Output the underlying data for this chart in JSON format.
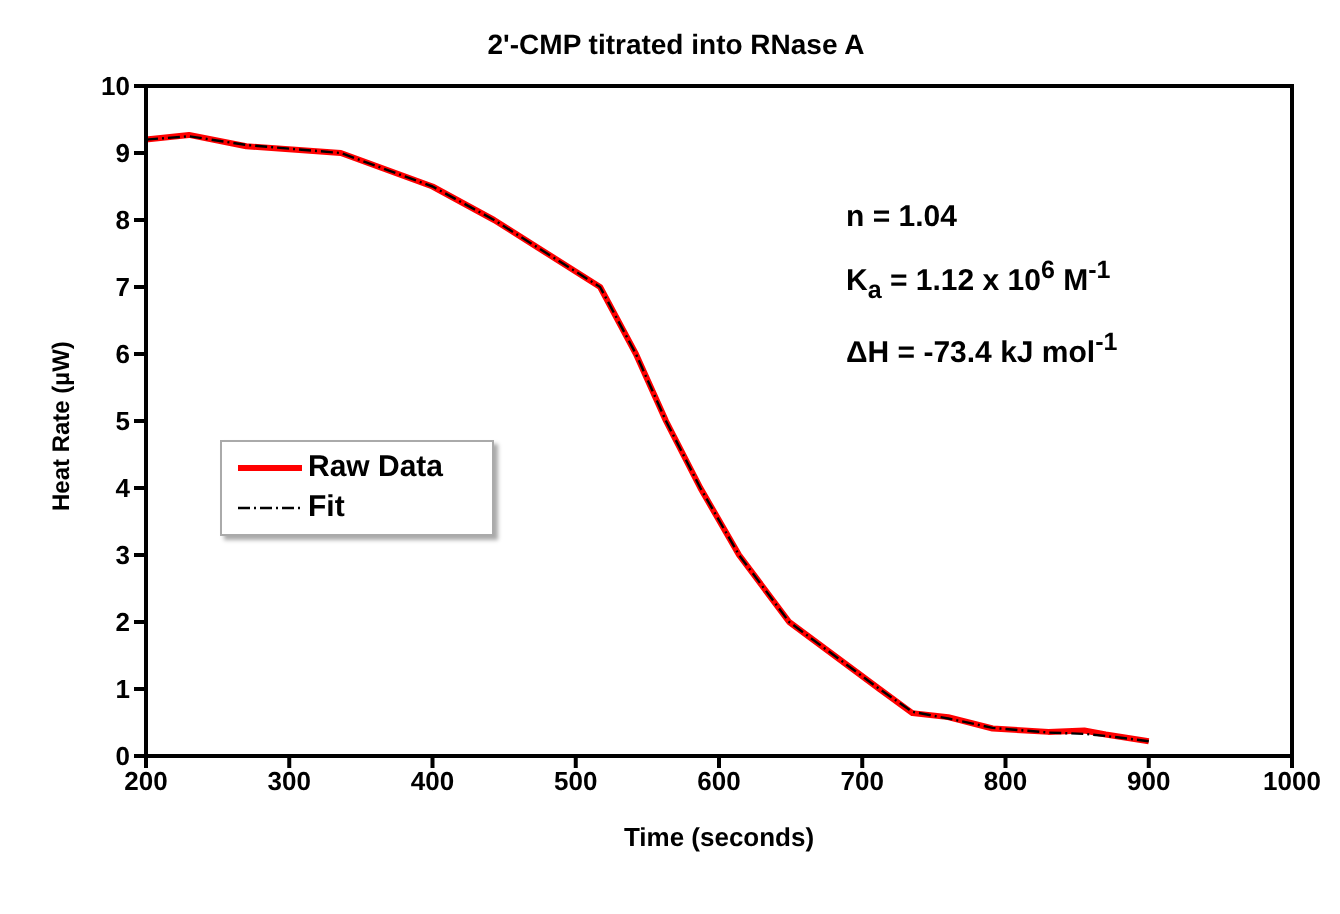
{
  "chart_data": {
    "type": "line",
    "title": "2'-CMP titrated into RNase A",
    "xlabel": "Time (seconds)",
    "ylabel": "Heat Rate (µW)",
    "annotations": [
      "n = 1.04",
      "K$_{a}$ = 1.12 x 10$^{6}$ M$^{-1}$",
      "ΔH = -73.4 kJ mol$^{-1}$"
    ],
    "series": [
      {
        "name": "Raw Data",
        "color": "#ff0000",
        "line_style": "solid",
        "x": [
          200,
          230,
          270,
          336,
          400,
          443,
          480,
          517,
          542,
          563,
          587,
          614,
          649,
          712,
          735,
          760,
          791,
          830,
          855,
          870,
          900
        ],
        "values": [
          9.2,
          9.27,
          9.1,
          9.0,
          8.5,
          8.0,
          7.5,
          7.0,
          6.0,
          5.0,
          4.0,
          3.0,
          2.0,
          1.0,
          0.64,
          0.58,
          0.41,
          0.36,
          0.38,
          0.32,
          0.22
        ]
      },
      {
        "name": "Fit",
        "color": "#000000",
        "line_style": "dashed",
        "x": [
          200,
          230,
          270,
          336,
          400,
          443,
          480,
          517,
          542,
          563,
          587,
          614,
          649,
          712,
          735,
          760,
          791,
          830,
          855,
          870,
          900
        ],
        "values": [
          9.2,
          9.25,
          9.12,
          9.0,
          8.5,
          8.0,
          7.5,
          7.0,
          6.0,
          5.0,
          4.0,
          3.0,
          2.0,
          1.0,
          0.66,
          0.56,
          0.42,
          0.35,
          0.33,
          0.3,
          0.22
        ]
      }
    ],
    "xlim": [
      200,
      1000
    ],
    "xticks": [
      200,
      300,
      400,
      500,
      600,
      700,
      800,
      900,
      1000
    ],
    "ylim": [
      0,
      10
    ],
    "yticks": [
      0,
      1,
      2,
      3,
      4,
      5,
      6,
      7,
      8,
      9,
      10
    ],
    "grid": false,
    "legend": "left",
    "marker": "none"
  }
}
